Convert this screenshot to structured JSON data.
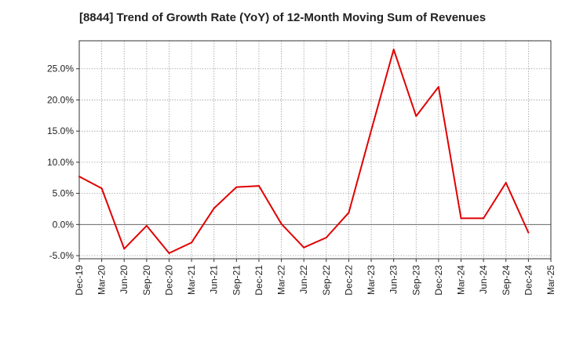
{
  "chart_data": {
    "type": "line",
    "title": "[8844]  Trend of Growth Rate (YoY) of 12-Month Moving Sum of Revenues",
    "xlabel": "",
    "ylabel": "",
    "x": [
      "Dec-19",
      "Mar-20",
      "Jun-20",
      "Sep-20",
      "Dec-20",
      "Mar-21",
      "Jun-21",
      "Sep-21",
      "Dec-21",
      "Mar-22",
      "Jun-22",
      "Sep-22",
      "Dec-22",
      "Mar-23",
      "Jun-23",
      "Sep-23",
      "Dec-23",
      "Mar-24",
      "Jun-24",
      "Sep-24",
      "Dec-24",
      "Mar-25"
    ],
    "series": [
      {
        "values": [
          7.7,
          5.8,
          -3.9,
          -0.2,
          -4.6,
          -2.9,
          2.6,
          6.0,
          6.2,
          0.1,
          -3.7,
          -2.1,
          1.9,
          15.1,
          28.1,
          17.4,
          22.1,
          1.0,
          1.0,
          6.7,
          -1.3,
          null
        ],
        "color": "#e00000"
      }
    ],
    "yticks": [
      "-5.0%",
      "0.0%",
      "5.0%",
      "10.0%",
      "15.0%",
      "20.0%",
      "25.0%"
    ],
    "ytick_values": [
      -5,
      0,
      5,
      10,
      15,
      20,
      25
    ],
    "ylim": [
      -5.5,
      29.5
    ],
    "grid": true,
    "zero_line": true
  }
}
